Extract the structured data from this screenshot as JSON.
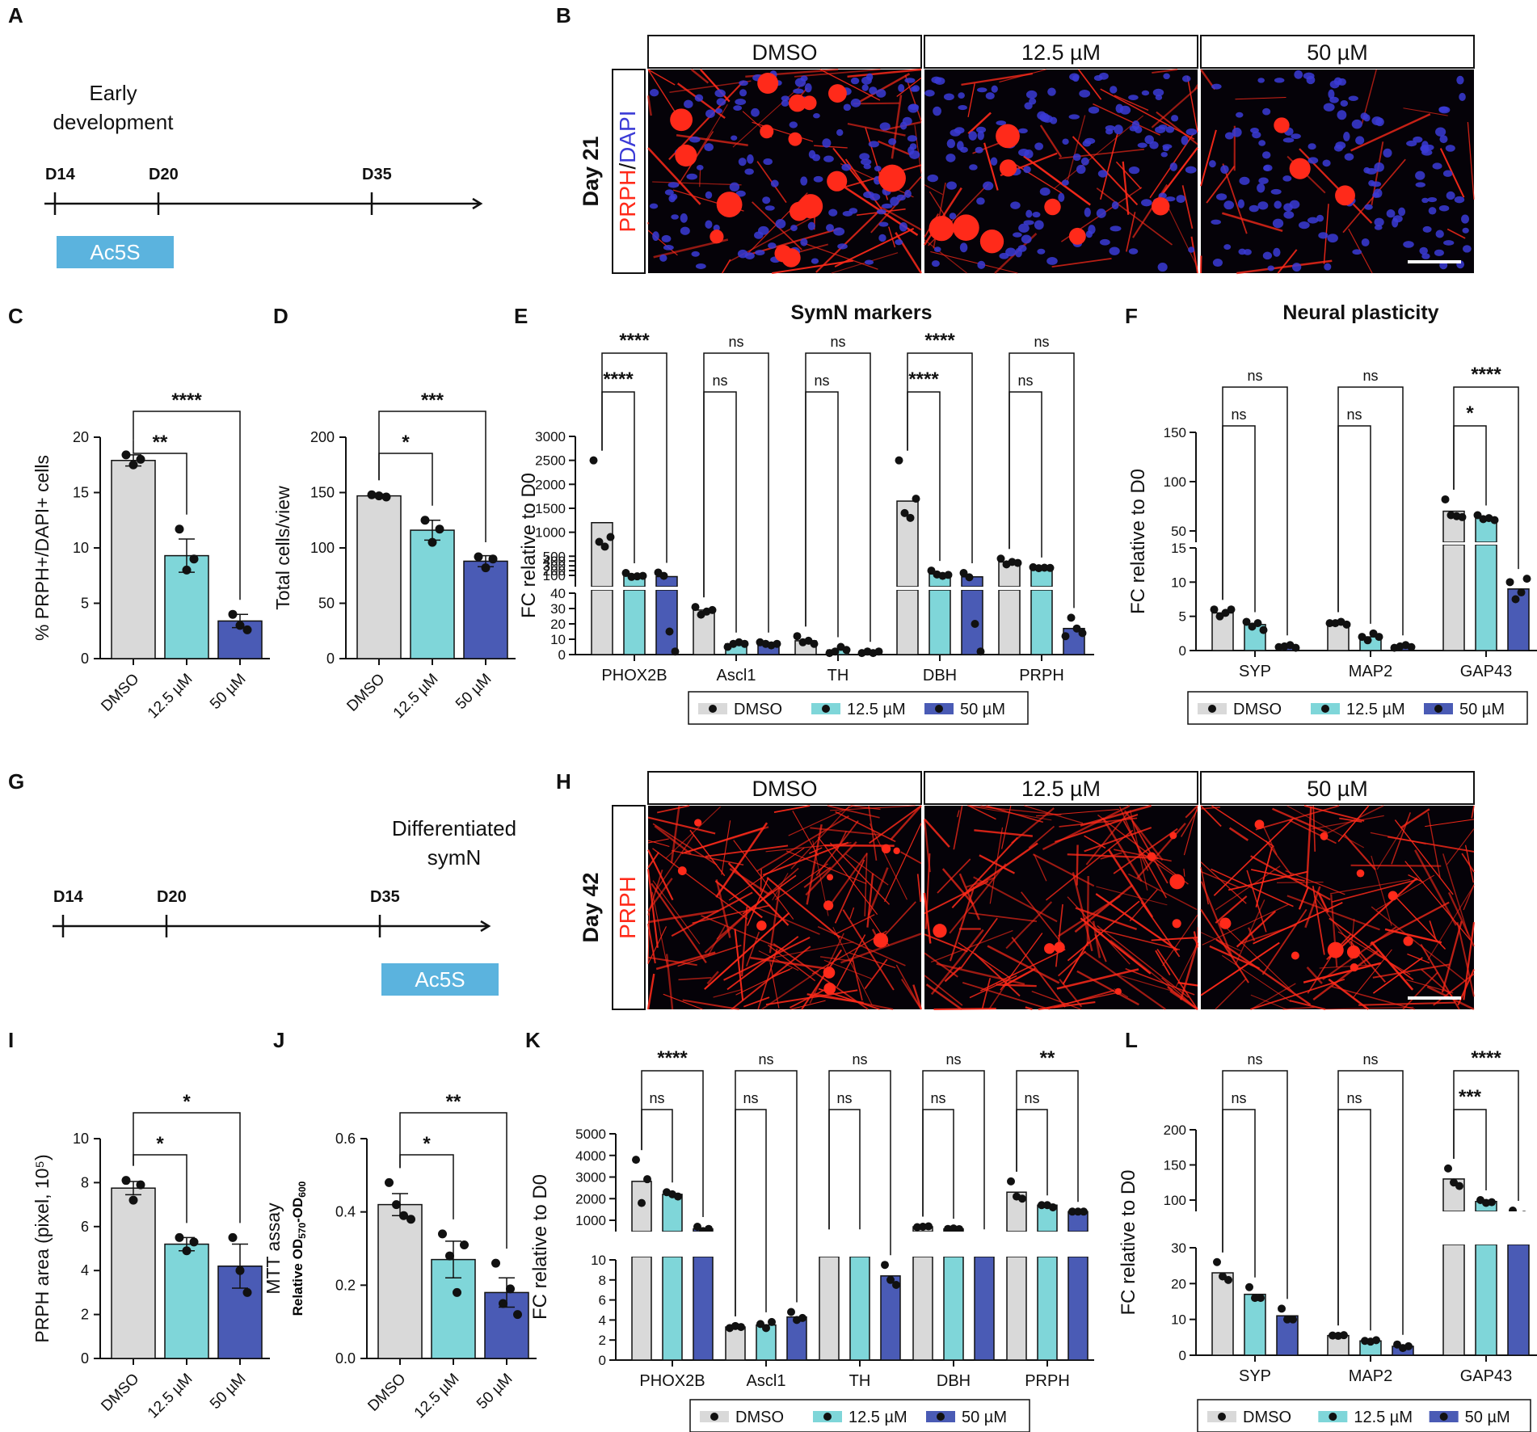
{
  "colors": {
    "dmso": "#d9d9d9",
    "mid": "#7fd6d9",
    "high": "#4a5bb5",
    "micrograph_red": "#ff2a1a",
    "micrograph_blue": "#3b3bd6",
    "timeline_bar": "#5bb3de"
  },
  "legend": {
    "items": [
      "DMSO",
      "12.5 µM",
      "50 µM"
    ]
  },
  "panels": {
    "A": {
      "letter": "A",
      "stage": "Early\ndevelopment",
      "days": [
        "D14",
        "D20",
        "D35"
      ],
      "treatment": "Ac5S"
    },
    "B": {
      "letter": "B",
      "conditions": [
        "DMSO",
        "12.5 µM",
        "50 µM"
      ],
      "row_label": "Day 21",
      "stain_a": "PRPH",
      "stain_sep": "/",
      "stain_b": "DAPI"
    },
    "G": {
      "letter": "G",
      "stage": "Differentiated\nsymN",
      "days": [
        "D14",
        "D20",
        "D35"
      ],
      "treatment": "Ac5S"
    },
    "H": {
      "letter": "H",
      "conditions": [
        "DMSO",
        "12.5 µM",
        "50 µM"
      ],
      "row_label": "Day 42",
      "stain_a": "PRPH"
    }
  },
  "chart_data": [
    {
      "id": "C",
      "type": "bar",
      "letter": "C",
      "ylabel": "% PRPH+/DAPI+ cells",
      "ylim": [
        0,
        20
      ],
      "yticks": [
        0,
        5,
        10,
        15,
        20
      ],
      "categories": [
        "DMSO",
        "12.5 µM",
        "50 µM"
      ],
      "values": [
        17.9,
        9.3,
        3.4
      ],
      "errors": [
        0.5,
        1.5,
        0.6
      ],
      "points": [
        [
          18.4,
          17.5,
          18.0
        ],
        [
          11.7,
          8.0,
          9.0
        ],
        [
          4.0,
          3.0,
          2.6
        ]
      ],
      "sig": [
        {
          "from": 0,
          "to": 1,
          "label": "**"
        },
        {
          "from": 0,
          "to": 2,
          "label": "****"
        }
      ]
    },
    {
      "id": "D",
      "type": "bar",
      "letter": "D",
      "ylabel": "Total cells/view",
      "ylim": [
        0,
        200
      ],
      "yticks": [
        0,
        50,
        100,
        150,
        200
      ],
      "categories": [
        "DMSO",
        "12.5 µM",
        "50 µM"
      ],
      "values": [
        147,
        116,
        88
      ],
      "errors": [
        1.5,
        9,
        5
      ],
      "points": [
        [
          148,
          147,
          146
        ],
        [
          125,
          105,
          117
        ],
        [
          92,
          82,
          90
        ]
      ],
      "sig": [
        {
          "from": 0,
          "to": 1,
          "label": "*"
        },
        {
          "from": 0,
          "to": 2,
          "label": "***"
        }
      ]
    },
    {
      "id": "E",
      "type": "bar",
      "letter": "E",
      "title": "SymN markers",
      "ylabel": "FC relative to D0",
      "upper_ticks": [
        100,
        200,
        300,
        400,
        500,
        1000,
        1500,
        2000,
        2500,
        3000
      ],
      "lower_ticks": [
        0,
        10,
        20,
        30,
        40
      ],
      "categories": [
        "PHOX2B",
        "Ascl1",
        "TH",
        "DBH",
        "PRPH"
      ],
      "series": [
        {
          "values": [
            1200,
            29,
            9,
            1650,
            380
          ],
          "points": [
            [
              2500,
              800,
              700,
              900
            ],
            [
              31,
              26,
              28,
              29
            ],
            [
              12,
              8,
              9,
              7
            ],
            [
              2500,
              1400,
              1300,
              1700
            ],
            [
              450,
              330,
              380,
              360
            ]
          ]
        },
        {
          "values": [
            90,
            7,
            3,
            130,
            260
          ],
          "points": [
            [
              150,
              70,
              80,
              90
            ],
            [
              5,
              7,
              8,
              7
            ],
            [
              1,
              2,
              5,
              3
            ],
            [
              200,
              120,
              90,
              110
            ],
            [
              270,
              250,
              260,
              255
            ]
          ]
        },
        {
          "values": [
            75,
            7,
            1.5,
            70,
            17
          ],
          "points": [
            [
              160,
              90,
              15,
              2
            ],
            [
              8,
              7,
              6,
              7
            ],
            [
              1,
              2,
              1,
              2
            ],
            [
              150,
              60,
              20,
              2
            ],
            [
              12,
              24,
              17,
              14
            ]
          ]
        }
      ],
      "sig": [
        {
          "cat": 0,
          "pairs": [
            {
              "label": "****",
              "to": 1
            },
            {
              "label": "****",
              "to": 2
            }
          ]
        },
        {
          "cat": 1,
          "pairs": [
            {
              "label": "ns",
              "to": 1
            },
            {
              "label": "ns",
              "to": 2
            }
          ]
        },
        {
          "cat": 2,
          "pairs": [
            {
              "label": "ns",
              "to": 1
            },
            {
              "label": "ns",
              "to": 2
            }
          ]
        },
        {
          "cat": 3,
          "pairs": [
            {
              "label": "****",
              "to": 1
            },
            {
              "label": "****",
              "to": 2
            }
          ]
        },
        {
          "cat": 4,
          "pairs": [
            {
              "label": "ns",
              "to": 1
            },
            {
              "label": "ns",
              "to": 2
            }
          ]
        }
      ]
    },
    {
      "id": "F",
      "type": "bar",
      "letter": "F",
      "title": "Neural plasticity",
      "ylabel": "FC relative to D0",
      "upper_ticks": [
        50,
        100,
        150
      ],
      "lower_ticks": [
        0,
        5,
        10,
        15
      ],
      "categories": [
        "SYP",
        "MAP2",
        "GAP43"
      ],
      "series": [
        {
          "values": [
            5.5,
            4,
            70
          ],
          "points": [
            [
              6,
              5,
              5.5,
              6
            ],
            [
              4,
              4,
              4.2,
              3.8
            ],
            [
              82,
              66,
              65,
              64
            ]
          ]
        },
        {
          "values": [
            3.8,
            2,
            63
          ],
          "points": [
            [
              4.2,
              3.5,
              4,
              3
            ],
            [
              2,
              1.5,
              2.5,
              2
            ],
            [
              66,
              62,
              63,
              61
            ]
          ]
        },
        {
          "values": [
            0.6,
            0.6,
            9
          ],
          "points": [
            [
              0.5,
              0.6,
              0.8,
              0.4
            ],
            [
              0.4,
              0.6,
              0.8,
              0.5
            ],
            [
              10,
              7.5,
              8.5,
              10.5
            ]
          ]
        }
      ],
      "sig": [
        {
          "cat": 0,
          "pairs": [
            {
              "label": "ns",
              "to": 1
            },
            {
              "label": "ns",
              "to": 2
            }
          ]
        },
        {
          "cat": 1,
          "pairs": [
            {
              "label": "ns",
              "to": 1
            },
            {
              "label": "ns",
              "to": 2
            }
          ]
        },
        {
          "cat": 2,
          "pairs": [
            {
              "label": "*",
              "to": 1
            },
            {
              "label": "****",
              "to": 2
            }
          ]
        }
      ]
    },
    {
      "id": "I",
      "type": "bar",
      "letter": "I",
      "ylabel": "PRPH area (pixel, 10⁵)",
      "ylim": [
        0,
        10
      ],
      "yticks": [
        0,
        2,
        4,
        6,
        8,
        10
      ],
      "categories": [
        "DMSO",
        "12.5 µM",
        "50 µM"
      ],
      "values": [
        7.75,
        5.2,
        4.2
      ],
      "errors": [
        0.3,
        0.3,
        1.0
      ],
      "points": [
        [
          8.1,
          7.2,
          7.9
        ],
        [
          5.5,
          4.9,
          5.3
        ],
        [
          5.5,
          4.0,
          3.0
        ]
      ],
      "sig": [
        {
          "from": 0,
          "to": 1,
          "label": "*"
        },
        {
          "from": 0,
          "to": 2,
          "label": "*"
        }
      ]
    },
    {
      "id": "J",
      "type": "bar",
      "letter": "J",
      "ylabel": "MTT assay",
      "ylabel2_prefix": "Relative ",
      "ylabel2": "OD570-OD600",
      "ylim": [
        0,
        0.6
      ],
      "yticks": [
        0.0,
        0.2,
        0.4,
        0.6
      ],
      "categories": [
        "DMSO",
        "12.5 µM",
        "50 µM"
      ],
      "values": [
        0.42,
        0.27,
        0.18
      ],
      "errors": [
        0.03,
        0.05,
        0.04
      ],
      "points": [
        [
          0.48,
          0.42,
          0.39,
          0.38
        ],
        [
          0.34,
          0.28,
          0.18,
          0.31
        ],
        [
          0.26,
          0.15,
          0.19,
          0.12
        ]
      ],
      "sig": [
        {
          "from": 0,
          "to": 1,
          "label": "*"
        },
        {
          "from": 0,
          "to": 2,
          "label": "**"
        }
      ]
    },
    {
      "id": "K",
      "type": "bar",
      "letter": "K",
      "ylabel": "FC relative to D0",
      "upper_ticks": [
        1000,
        2000,
        3000,
        4000,
        5000
      ],
      "lower_ticks": [
        0,
        2,
        4,
        6,
        8,
        10
      ],
      "categories": [
        "PHOX2B",
        "Ascl1",
        "TH",
        "DBH",
        "PRPH"
      ],
      "series": [
        {
          "values": [
            2800,
            3.3,
            130,
            700,
            2300
          ],
          "points": [
            [
              3800,
              1800,
              2900
            ],
            [
              3.2,
              3.4,
              3.3
            ],
            [
              130,
              130,
              130
            ],
            [
              680,
              700,
              720
            ],
            [
              2800,
              2100,
              2000
            ]
          ]
        },
        {
          "values": [
            2200,
            3.5,
            130,
            600,
            1700
          ],
          "points": [
            [
              2300,
              2200,
              2100
            ],
            [
              3.6,
              3.2,
              3.8
            ],
            [
              130,
              130,
              130
            ],
            [
              600,
              620,
              590
            ],
            [
              1700,
              1700,
              1600
            ]
          ]
        },
        {
          "values": [
            600,
            4.3,
            8.4,
            130,
            1400
          ],
          "points": [
            [
              700,
              500,
              600
            ],
            [
              4.8,
              4,
              4.2
            ],
            [
              9.5,
              8,
              7.5
            ],
            [
              130,
              130,
              130
            ],
            [
              1400,
              1400,
              1400
            ]
          ]
        }
      ],
      "sig": [
        {
          "cat": 0,
          "pairs": [
            {
              "label": "ns",
              "to": 1
            },
            {
              "label": "****",
              "to": 2
            }
          ]
        },
        {
          "cat": 1,
          "pairs": [
            {
              "label": "ns",
              "to": 1
            },
            {
              "label": "ns",
              "to": 2
            }
          ]
        },
        {
          "cat": 2,
          "pairs": [
            {
              "label": "ns",
              "to": 1
            },
            {
              "label": "ns",
              "to": 2
            }
          ]
        },
        {
          "cat": 3,
          "pairs": [
            {
              "label": "ns",
              "to": 1
            },
            {
              "label": "ns",
              "to": 2
            }
          ]
        },
        {
          "cat": 4,
          "pairs": [
            {
              "label": "ns",
              "to": 1
            },
            {
              "label": "**",
              "to": 2
            }
          ]
        }
      ]
    },
    {
      "id": "L",
      "type": "bar",
      "letter": "L",
      "ylabel": "FC relative to D0",
      "upper_ticks": [
        100,
        150,
        200
      ],
      "lower_ticks": [
        0,
        10,
        20,
        30
      ],
      "categories": [
        "SYP",
        "MAP2",
        "GAP43"
      ],
      "series": [
        {
          "values": [
            23,
            5.5,
            130
          ],
          "points": [
            [
              26,
              22,
              21
            ],
            [
              5.5,
              5.4,
              5.6
            ],
            [
              145,
              125,
              120
            ]
          ]
        },
        {
          "values": [
            17,
            4,
            98
          ],
          "points": [
            [
              19,
              16,
              16
            ],
            [
              4,
              3.8,
              4.2
            ],
            [
              100,
              96,
              97
            ]
          ]
        },
        {
          "values": [
            11,
            2.5,
            80
          ],
          "points": [
            [
              13,
              10,
              10
            ],
            [
              3,
              2,
              2.5
            ],
            [
              85,
              78,
              79
            ]
          ]
        }
      ],
      "sig": [
        {
          "cat": 0,
          "pairs": [
            {
              "label": "ns",
              "to": 1
            },
            {
              "label": "ns",
              "to": 2
            }
          ]
        },
        {
          "cat": 1,
          "pairs": [
            {
              "label": "ns",
              "to": 1
            },
            {
              "label": "ns",
              "to": 2
            }
          ]
        },
        {
          "cat": 2,
          "pairs": [
            {
              "label": "***",
              "to": 1
            },
            {
              "label": "****",
              "to": 2
            }
          ]
        }
      ]
    }
  ]
}
